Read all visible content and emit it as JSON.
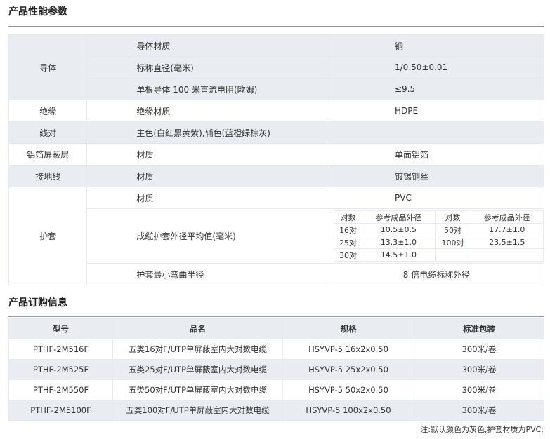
{
  "section1": {
    "title": "产品性能参数",
    "rows": [
      {
        "group": "导体",
        "prop": "导体材质",
        "value": "铜"
      },
      {
        "prop": "标称直径(毫米)",
        "value": "1/0.50±0.01"
      },
      {
        "prop": "单根导体 100 米直流电阻(欧姆)",
        "value": "≤9.5"
      },
      {
        "group": "绝缘",
        "prop": "绝缘材质",
        "value": "HDPE"
      },
      {
        "group": "线对",
        "prop": "主色(白红黑黄紫),辅色(蓝橙绿棕灰)"
      },
      {
        "group": "铝箔屏蔽层",
        "prop": "材质",
        "value": "单面铝箔"
      },
      {
        "group": "接地线",
        "prop": "材质",
        "value": "镀锡铜丝"
      },
      {
        "group": "护套",
        "prop": "材质",
        "value": "PVC"
      },
      {
        "prop": "成缆护套外径平均值(毫米)"
      },
      {
        "prop": "护套最小弯曲半径",
        "value": "8 倍电缆标称外径"
      }
    ],
    "diameter_table": {
      "headers": [
        "对数",
        "参考成品外径",
        "对数",
        "参考成品外径"
      ],
      "rows": [
        [
          "16对",
          "10.5±0.5",
          "50对",
          "17.7±1.0"
        ],
        [
          "25对",
          "13.3±1.0",
          "100对",
          "23.5±1.5"
        ],
        [
          "30对",
          "14.5±1.0",
          "",
          ""
        ]
      ]
    }
  },
  "section2": {
    "title": "产品订购信息",
    "headers": [
      "型号",
      "品名",
      "规格",
      "标准包装"
    ],
    "rows": [
      [
        "PTHF-2M516F",
        "五类16对F/UTP单屏蔽室内大对数电缆",
        "HSYVP-5 16x2x0.50",
        "300米/卷"
      ],
      [
        "PTHF-2M525F",
        "五类25对F/UTP单屏蔽室内大对数电缆",
        "HSYVP-5 25x2x0.50",
        "300米/卷"
      ],
      [
        "PTHF-2M550F",
        "五类50对F/UTP单屏蔽室内大对数电缆",
        "HSYVP-5 50x2x0.50",
        "300米/卷"
      ],
      [
        "PTHF-2M5100F",
        "五类100对F/UTP单屏蔽室内大对数电缆",
        "HSYVP-5 100x2x0.50",
        "300米/卷"
      ]
    ],
    "note": "注:默认颜色为灰色,护套材质为PVC;"
  }
}
